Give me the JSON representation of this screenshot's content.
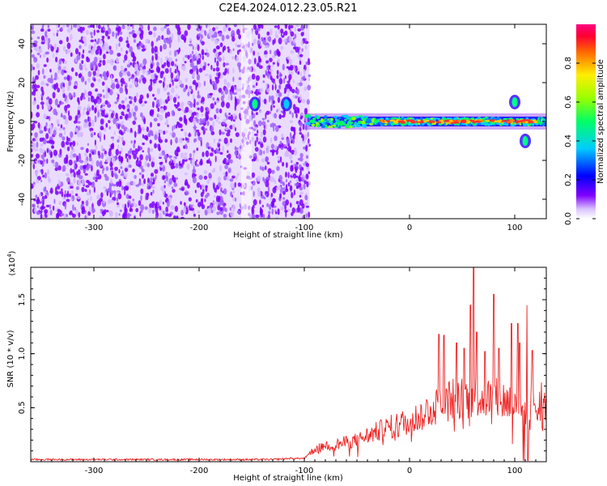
{
  "title": "C2E4.2024.012.23.05.R21",
  "chart_data": [
    {
      "type": "heatmap",
      "title": "C2E4.2024.012.23.05.R21",
      "xlabel": "Height of straight line (km)",
      "ylabel": "Frequency (Hz)",
      "xlim": [
        -360,
        130
      ],
      "ylim": [
        -50,
        50
      ],
      "xticks": [
        -300,
        -200,
        -100,
        0,
        100
      ],
      "yticks": [
        -40,
        -20,
        0,
        20,
        40
      ],
      "colorbar": {
        "label": "Normalized spectral amplitude",
        "range": [
          0,
          1
        ],
        "ticks": [
          0.0,
          0.2,
          0.4,
          0.6,
          0.8
        ],
        "colormap": [
          "#ffffff",
          "#d9c2ff",
          "#7f00ff",
          "#0000ff",
          "#00ccff",
          "#00ff66",
          "#99ff00",
          "#ffee00",
          "#ff6600",
          "#ff0033",
          "#ff0080"
        ]
      },
      "noise_region_x": [
        -360,
        -95
      ],
      "signal_band_center_hz": 0,
      "features": [
        {
          "x": -147,
          "y": 9,
          "amplitude": 0.45
        },
        {
          "x": -117,
          "y": 9,
          "amplitude": 0.3
        },
        {
          "x": 100,
          "y": 10,
          "amplitude": 0.5
        },
        {
          "x": 110,
          "y": -10,
          "amplitude": 0.5
        }
      ]
    },
    {
      "type": "line",
      "xlabel": "Height of straight line (km)",
      "ylabel": "SNR (10 * v/v)",
      "y_multiplier_label": "(x10",
      "y_multiplier_exp": "4",
      "y_multiplier_close": ")",
      "xlim": [
        -360,
        130
      ],
      "ylim": [
        0,
        1.8
      ],
      "xticks": [
        -300,
        -200,
        -100,
        0,
        100
      ],
      "yticks": [
        0.5,
        1.0,
        1.5
      ],
      "ytick_labels": [
        "0.5",
        "1.0",
        "1.5"
      ],
      "color": "#ee2222",
      "envelope": {
        "x": [
          -360,
          -130,
          -115,
          -100,
          -90,
          -70,
          -50,
          -30,
          -10,
          0,
          10,
          20,
          30,
          40,
          60,
          80,
          100,
          110,
          115,
          120,
          130
        ],
        "y": [
          0.02,
          0.02,
          0.03,
          0.03,
          0.12,
          0.16,
          0.2,
          0.28,
          0.35,
          0.38,
          0.42,
          0.5,
          0.52,
          0.58,
          0.6,
          0.58,
          0.55,
          0.45,
          0.55,
          0.57,
          0.57
        ]
      },
      "spikes": [
        {
          "x": 28,
          "y": 1.18
        },
        {
          "x": 33,
          "y": 1.17
        },
        {
          "x": 45,
          "y": 1.1
        },
        {
          "x": 52,
          "y": 1.05
        },
        {
          "x": 58,
          "y": 1.45
        },
        {
          "x": 61,
          "y": 1.82
        },
        {
          "x": 64,
          "y": 1.2
        },
        {
          "x": 72,
          "y": 1.02
        },
        {
          "x": 80,
          "y": 1.55
        },
        {
          "x": 85,
          "y": 1.05
        },
        {
          "x": 97,
          "y": 1.28
        },
        {
          "x": 103,
          "y": 1.28
        },
        {
          "x": 105,
          "y": 1.1
        },
        {
          "x": 112,
          "y": 1.45
        },
        {
          "x": 117,
          "y": 1.03
        }
      ]
    }
  ]
}
